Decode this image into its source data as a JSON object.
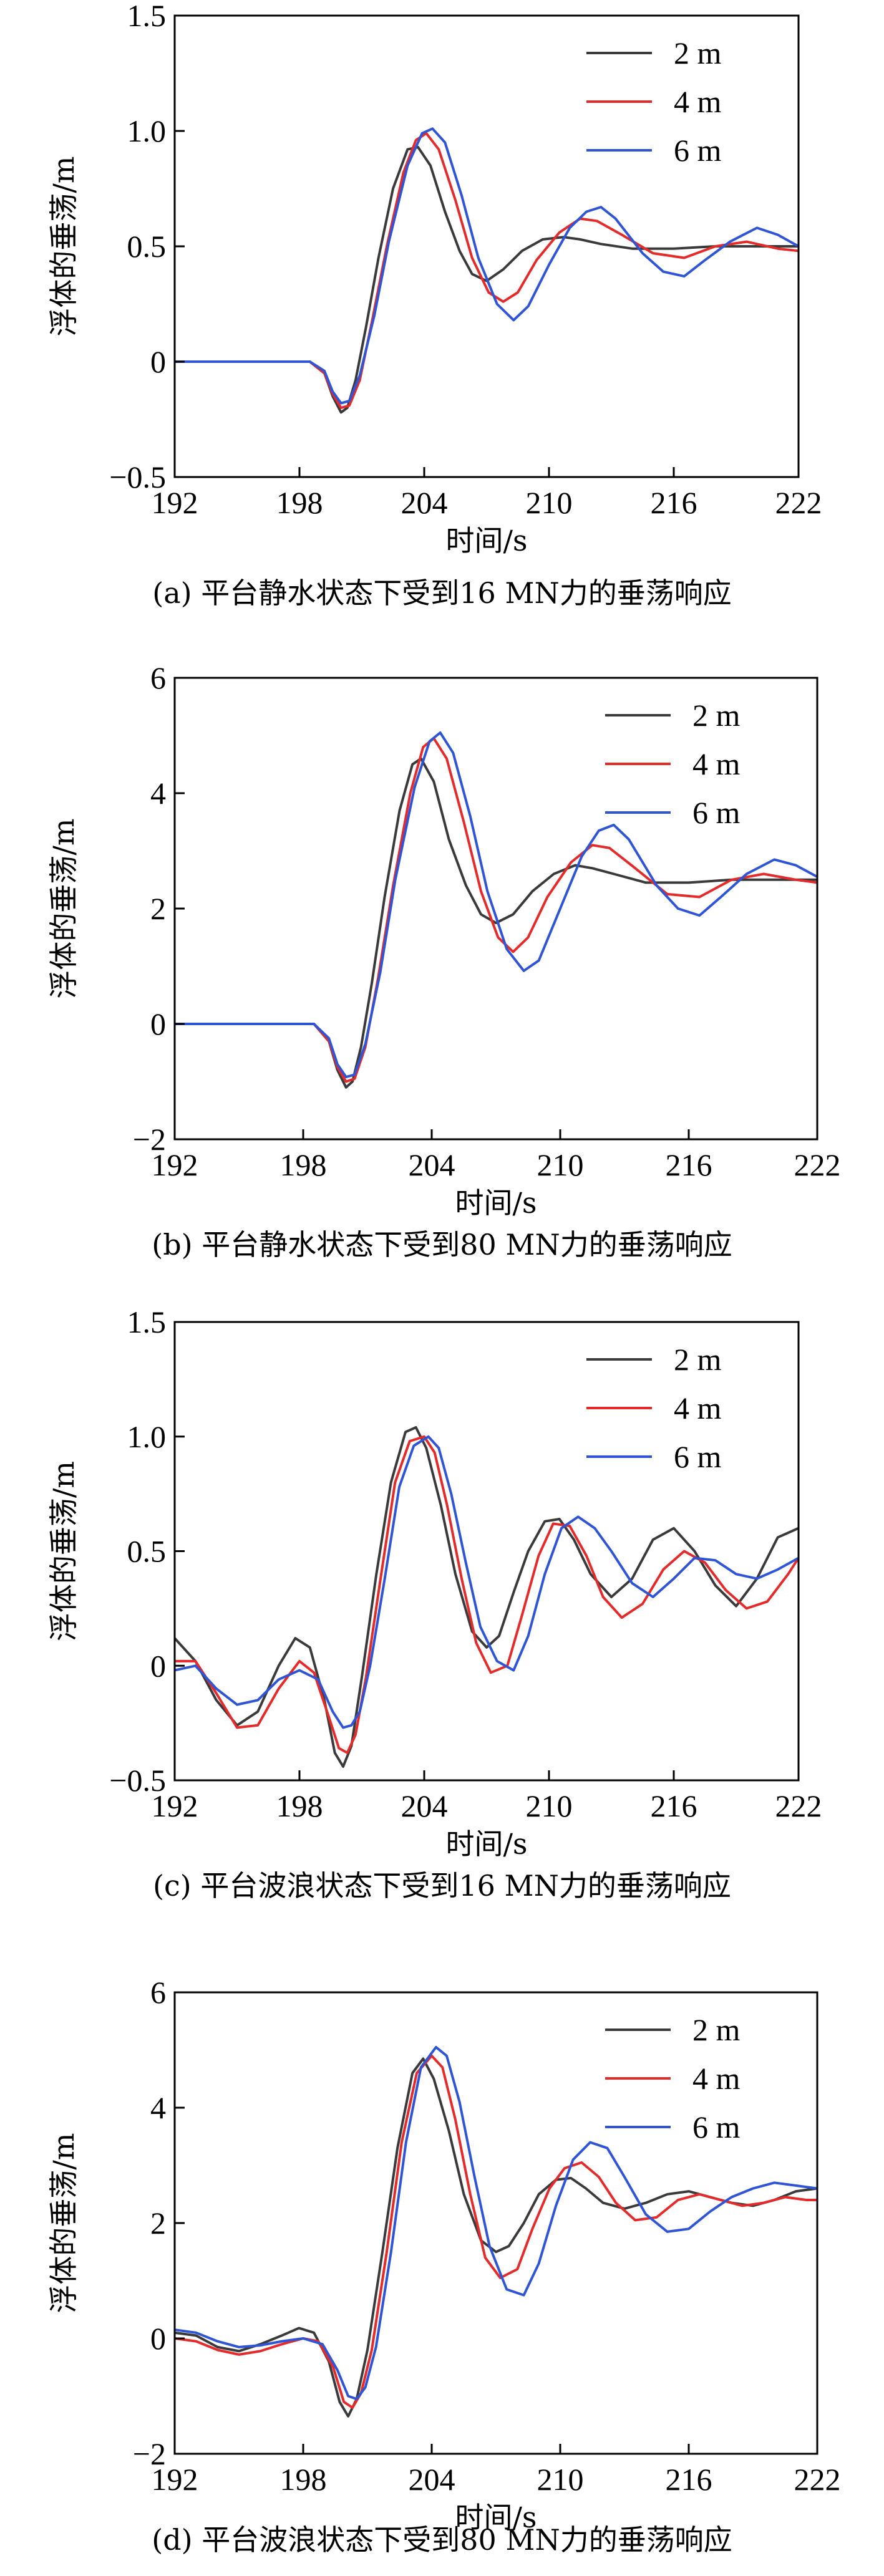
{
  "series_colors": [
    "#3a3a3a",
    "#e32b2b",
    "#2f55d4"
  ],
  "chart_data": [
    {
      "type": "line",
      "caption": "(a) 平台静水状态下受到16 MN力的垂荡响应",
      "xlabel": "时间/s",
      "ylabel": "浮体的垂荡/m",
      "xlim": [
        192,
        222
      ],
      "ylim": [
        -0.5,
        1.5
      ],
      "xticks": [
        192,
        198,
        204,
        210,
        216,
        222
      ],
      "yticks": [
        -0.5,
        0,
        0.5,
        1.0,
        1.5
      ],
      "ytick_labels": [
        "−0.5",
        "0",
        "0.5",
        "1.0",
        "1.5"
      ],
      "legend_position": "top-right",
      "series": [
        {
          "name": "2 m",
          "x": [
            192,
            195,
            197,
            198.5,
            199.2,
            199.6,
            200.0,
            200.3,
            200.7,
            201.2,
            201.8,
            202.5,
            203.2,
            203.7,
            204.3,
            205,
            205.7,
            206.3,
            207,
            207.8,
            208.7,
            209.7,
            210.7,
            211.5,
            212.5,
            214,
            216,
            218,
            220,
            222
          ],
          "y": [
            0,
            0,
            0,
            0,
            -0.05,
            -0.15,
            -0.22,
            -0.2,
            -0.08,
            0.15,
            0.45,
            0.75,
            0.92,
            0.93,
            0.85,
            0.65,
            0.48,
            0.38,
            0.35,
            0.4,
            0.48,
            0.53,
            0.54,
            0.53,
            0.51,
            0.49,
            0.49,
            0.5,
            0.5,
            0.5
          ]
        },
        {
          "name": "4 m",
          "x": [
            192,
            195,
            197,
            198.5,
            199.2,
            199.6,
            200.0,
            200.4,
            200.9,
            201.5,
            202.2,
            203,
            203.6,
            204.1,
            204.7,
            205.5,
            206.3,
            207.1,
            207.8,
            208.5,
            209.4,
            210.5,
            211.5,
            212.3,
            213.5,
            215,
            216.5,
            218,
            219.5,
            221,
            222
          ],
          "y": [
            0,
            0,
            0,
            0,
            -0.05,
            -0.14,
            -0.2,
            -0.19,
            -0.08,
            0.18,
            0.5,
            0.82,
            0.96,
            0.99,
            0.92,
            0.7,
            0.45,
            0.3,
            0.26,
            0.3,
            0.44,
            0.56,
            0.62,
            0.61,
            0.55,
            0.47,
            0.45,
            0.5,
            0.52,
            0.49,
            0.48
          ]
        },
        {
          "name": "6 m",
          "x": [
            192,
            195,
            197,
            198.5,
            199.2,
            199.6,
            200.0,
            200.4,
            200.9,
            201.6,
            202.3,
            203.2,
            203.9,
            204.4,
            205,
            205.8,
            206.6,
            207.5,
            208.3,
            209,
            210,
            211,
            211.8,
            212.5,
            213.2,
            214.5,
            215.5,
            216.5,
            217.5,
            218.7,
            220,
            221,
            222
          ],
          "y": [
            0,
            0,
            0,
            0,
            -0.04,
            -0.13,
            -0.18,
            -0.17,
            -0.06,
            0.2,
            0.52,
            0.85,
            0.99,
            1.01,
            0.95,
            0.72,
            0.45,
            0.25,
            0.18,
            0.24,
            0.42,
            0.58,
            0.65,
            0.67,
            0.62,
            0.47,
            0.39,
            0.37,
            0.44,
            0.52,
            0.58,
            0.55,
            0.5
          ]
        }
      ]
    },
    {
      "type": "line",
      "caption": "(b) 平台静水状态下受到80 MN力的垂荡响应",
      "xlabel": "时间/s",
      "ylabel": "浮体的垂荡/m",
      "xlim": [
        192,
        222
      ],
      "ylim": [
        -2,
        6
      ],
      "xticks": [
        192,
        198,
        204,
        210,
        216,
        222
      ],
      "yticks": [
        -2,
        0,
        2,
        4,
        6
      ],
      "ytick_labels": [
        "−2",
        "0",
        "2",
        "4",
        "6"
      ],
      "legend_position": "top-right",
      "series": [
        {
          "name": "2 m",
          "x": [
            192,
            195,
            197,
            198.5,
            199.2,
            199.6,
            200.0,
            200.3,
            200.7,
            201.2,
            201.8,
            202.5,
            203.1,
            203.5,
            204.1,
            204.8,
            205.6,
            206.3,
            207,
            207.8,
            208.7,
            209.7,
            210.7,
            211.5,
            212.5,
            214,
            216,
            218,
            220,
            222
          ],
          "y": [
            0,
            0,
            0,
            0,
            -0.3,
            -0.8,
            -1.1,
            -1.0,
            -0.4,
            0.7,
            2.2,
            3.7,
            4.5,
            4.6,
            4.2,
            3.2,
            2.4,
            1.9,
            1.75,
            1.9,
            2.3,
            2.6,
            2.75,
            2.7,
            2.6,
            2.45,
            2.45,
            2.5,
            2.5,
            2.5
          ]
        },
        {
          "name": "4 m",
          "x": [
            192,
            195,
            197,
            198.5,
            199.2,
            199.6,
            200.0,
            200.4,
            200.9,
            201.5,
            202.2,
            203,
            203.6,
            204.1,
            204.7,
            205.5,
            206.3,
            207.1,
            207.8,
            208.5,
            209.4,
            210.5,
            211.5,
            212.3,
            213.5,
            215,
            216.5,
            218,
            219.5,
            221,
            222
          ],
          "y": [
            0,
            0,
            0,
            0,
            -0.3,
            -0.75,
            -1.0,
            -0.95,
            -0.4,
            0.8,
            2.4,
            4.0,
            4.8,
            4.95,
            4.6,
            3.5,
            2.3,
            1.5,
            1.25,
            1.5,
            2.2,
            2.8,
            3.1,
            3.05,
            2.7,
            2.25,
            2.2,
            2.5,
            2.6,
            2.5,
            2.45
          ]
        },
        {
          "name": "6 m",
          "x": [
            192,
            195,
            197,
            198.5,
            199.2,
            199.6,
            200.0,
            200.4,
            200.9,
            201.6,
            202.3,
            203.2,
            203.9,
            204.4,
            205,
            205.8,
            206.6,
            207.5,
            208.3,
            209,
            210,
            211,
            211.8,
            212.5,
            213.2,
            214.5,
            215.5,
            216.5,
            217.5,
            218.7,
            220,
            221,
            222
          ],
          "y": [
            0,
            0,
            0,
            0,
            -0.25,
            -0.7,
            -0.92,
            -0.88,
            -0.35,
            0.9,
            2.5,
            4.1,
            4.9,
            5.05,
            4.7,
            3.6,
            2.3,
            1.3,
            0.92,
            1.1,
            2.0,
            2.9,
            3.35,
            3.45,
            3.2,
            2.4,
            2.0,
            1.88,
            2.2,
            2.6,
            2.85,
            2.75,
            2.55
          ]
        }
      ]
    },
    {
      "type": "line",
      "caption": "(c) 平台波浪状态下受到16 MN力的垂荡响应",
      "xlabel": "时间/s",
      "ylabel": "浮体的垂荡/m",
      "xlim": [
        192,
        222
      ],
      "ylim": [
        -0.5,
        1.5
      ],
      "xticks": [
        192,
        198,
        204,
        210,
        216,
        222
      ],
      "yticks": [
        -0.5,
        0,
        0.5,
        1.0,
        1.5
      ],
      "ytick_labels": [
        "−0.5",
        "0",
        "0.5",
        "1.0",
        "1.5"
      ],
      "legend_position": "top-right",
      "series": [
        {
          "name": "2 m",
          "x": [
            192,
            193,
            194,
            195,
            196,
            197,
            197.8,
            198.5,
            199.2,
            199.7,
            200.1,
            200.5,
            201,
            201.7,
            202.4,
            203.1,
            203.6,
            204.1,
            204.8,
            205.5,
            206.3,
            207,
            207.6,
            208.3,
            209,
            209.8,
            210.5,
            211.2,
            212,
            213,
            214,
            215,
            216,
            217,
            218,
            219,
            220,
            221,
            222
          ],
          "y": [
            0.12,
            0.02,
            -0.15,
            -0.26,
            -0.2,
            0.0,
            0.12,
            0.08,
            -0.15,
            -0.38,
            -0.44,
            -0.35,
            -0.05,
            0.4,
            0.8,
            1.02,
            1.04,
            0.95,
            0.7,
            0.4,
            0.15,
            0.08,
            0.13,
            0.32,
            0.5,
            0.63,
            0.64,
            0.55,
            0.4,
            0.3,
            0.38,
            0.55,
            0.6,
            0.5,
            0.35,
            0.26,
            0.38,
            0.56,
            0.6
          ]
        },
        {
          "name": "4 m",
          "x": [
            192,
            193,
            194,
            195,
            196,
            197,
            198,
            198.7,
            199.4,
            199.9,
            200.3,
            200.7,
            201.2,
            201.9,
            202.6,
            203.3,
            204,
            204.5,
            205.1,
            205.8,
            206.5,
            207.2,
            208,
            208.7,
            209.5,
            210.2,
            211,
            211.8,
            212.6,
            213.5,
            214.5,
            215.5,
            216.5,
            217.5,
            218.5,
            219.5,
            220.5,
            221.5,
            222
          ],
          "y": [
            0.02,
            0.02,
            -0.12,
            -0.27,
            -0.26,
            -0.1,
            0.02,
            -0.03,
            -0.22,
            -0.36,
            -0.38,
            -0.3,
            -0.05,
            0.38,
            0.8,
            0.98,
            1.0,
            0.93,
            0.7,
            0.38,
            0.1,
            -0.03,
            0.0,
            0.22,
            0.48,
            0.62,
            0.61,
            0.48,
            0.3,
            0.21,
            0.27,
            0.42,
            0.5,
            0.45,
            0.33,
            0.25,
            0.28,
            0.4,
            0.47
          ]
        },
        {
          "name": "6 m",
          "x": [
            192,
            193,
            194,
            195,
            196,
            197,
            198,
            198.9,
            199.6,
            200.1,
            200.5,
            200.9,
            201.4,
            202.1,
            202.8,
            203.5,
            204.2,
            204.7,
            205.3,
            206,
            206.7,
            207.5,
            208.3,
            209,
            209.8,
            210.6,
            211.4,
            212.2,
            213,
            214,
            215,
            216,
            217,
            218,
            219,
            220,
            221,
            222
          ],
          "y": [
            -0.02,
            0.0,
            -0.1,
            -0.17,
            -0.15,
            -0.06,
            -0.02,
            -0.06,
            -0.2,
            -0.27,
            -0.26,
            -0.2,
            0.0,
            0.38,
            0.78,
            0.96,
            1.0,
            0.95,
            0.75,
            0.45,
            0.17,
            0.02,
            -0.02,
            0.13,
            0.4,
            0.6,
            0.65,
            0.6,
            0.5,
            0.36,
            0.3,
            0.38,
            0.47,
            0.46,
            0.4,
            0.38,
            0.42,
            0.47
          ]
        }
      ]
    },
    {
      "type": "line",
      "caption": "(d) 平台波浪状态下受到80 MN力的垂荡响应",
      "xlabel": "时间/s",
      "ylabel": "浮体的垂荡/m",
      "xlim": [
        192,
        222
      ],
      "ylim": [
        -2,
        6
      ],
      "xticks": [
        192,
        198,
        204,
        210,
        216,
        222
      ],
      "yticks": [
        -2,
        0,
        2,
        4,
        6
      ],
      "ytick_labels": [
        "−2",
        "0",
        "2",
        "4",
        "6"
      ],
      "legend_position": "top-right",
      "series": [
        {
          "name": "2 m",
          "x": [
            192,
            193,
            194,
            195,
            196,
            197,
            197.8,
            198.5,
            199.2,
            199.7,
            200.1,
            200.5,
            201,
            201.7,
            202.4,
            203.1,
            203.6,
            204.1,
            204.8,
            205.5,
            206.3,
            207,
            207.6,
            208.3,
            209,
            209.8,
            210.5,
            211.2,
            212,
            213,
            214,
            215,
            216,
            217,
            218,
            219,
            220,
            221,
            222
          ],
          "y": [
            0.1,
            0.05,
            -0.15,
            -0.22,
            -0.1,
            0.05,
            0.18,
            0.1,
            -0.4,
            -1.1,
            -1.35,
            -1.05,
            -0.2,
            1.5,
            3.3,
            4.6,
            4.85,
            4.5,
            3.6,
            2.5,
            1.7,
            1.5,
            1.6,
            2.0,
            2.5,
            2.75,
            2.78,
            2.6,
            2.35,
            2.25,
            2.35,
            2.5,
            2.55,
            2.45,
            2.35,
            2.3,
            2.4,
            2.55,
            2.6
          ]
        },
        {
          "name": "4 m",
          "x": [
            192,
            193,
            194,
            195,
            196,
            197,
            198,
            198.7,
            199.4,
            199.9,
            200.3,
            200.7,
            201.2,
            201.9,
            202.6,
            203.3,
            204,
            204.5,
            205.1,
            205.8,
            206.5,
            207.2,
            208,
            208.7,
            209.5,
            210.2,
            211,
            211.8,
            212.6,
            213.5,
            214.5,
            215.5,
            216.5,
            217.5,
            218.5,
            219.5,
            220.5,
            221.5,
            222
          ],
          "y": [
            0.0,
            -0.05,
            -0.2,
            -0.28,
            -0.22,
            -0.1,
            0.0,
            -0.05,
            -0.5,
            -1.1,
            -1.2,
            -0.95,
            -0.2,
            1.5,
            3.4,
            4.6,
            4.9,
            4.7,
            3.8,
            2.5,
            1.4,
            1.05,
            1.2,
            1.9,
            2.6,
            2.95,
            3.05,
            2.8,
            2.35,
            2.05,
            2.1,
            2.4,
            2.5,
            2.4,
            2.3,
            2.35,
            2.45,
            2.4,
            2.4
          ]
        },
        {
          "name": "6 m",
          "x": [
            192,
            193,
            194,
            195,
            196,
            197,
            198,
            198.9,
            199.6,
            200.1,
            200.5,
            200.9,
            201.4,
            202.1,
            202.8,
            203.5,
            204.2,
            204.7,
            205.3,
            206,
            206.7,
            207.5,
            208.3,
            209,
            209.8,
            210.6,
            211.4,
            212.2,
            213,
            214,
            215,
            216,
            217,
            218,
            219,
            220,
            221,
            222
          ],
          "y": [
            0.15,
            0.1,
            -0.05,
            -0.15,
            -0.12,
            -0.05,
            0.0,
            -0.1,
            -0.55,
            -1.0,
            -1.05,
            -0.85,
            -0.15,
            1.5,
            3.4,
            4.7,
            5.05,
            4.9,
            4.1,
            2.8,
            1.6,
            0.85,
            0.75,
            1.3,
            2.3,
            3.1,
            3.4,
            3.3,
            2.8,
            2.15,
            1.85,
            1.9,
            2.2,
            2.45,
            2.6,
            2.7,
            2.65,
            2.6
          ]
        }
      ]
    }
  ]
}
